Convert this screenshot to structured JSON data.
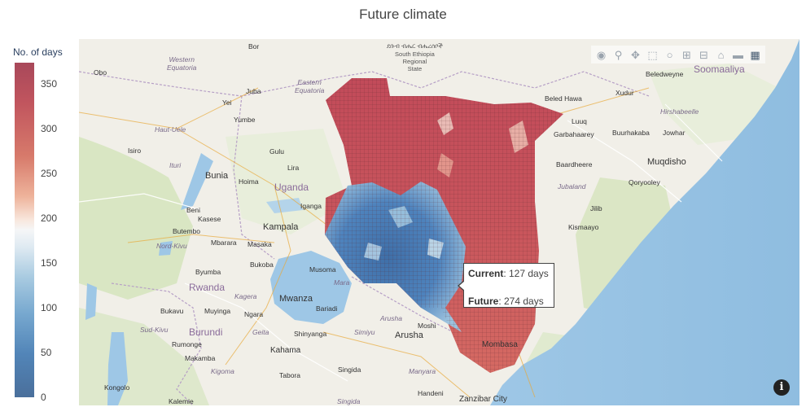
{
  "title": "Future climate",
  "colorbar": {
    "title": "No. of days",
    "ticks": [
      "350",
      "300",
      "250",
      "200",
      "150",
      "100",
      "50",
      "0"
    ]
  },
  "tooltip": {
    "current_label": "Current",
    "current_value": ": 127 days",
    "future_label": "Future",
    "future_value": ": 274 days"
  },
  "modebar": {
    "icons": [
      "camera-icon",
      "zoom-icon",
      "pan-icon",
      "box-select-icon",
      "lasso-icon",
      "zoom-in-icon",
      "zoom-out-icon",
      "home-icon",
      "reset-view-icon",
      "plotly-logo-icon"
    ]
  },
  "map_labels": {
    "bor": "Bor",
    "obo": "Obo",
    "juba": "Juba",
    "yei": "Yei",
    "yumbe": "Yumbe",
    "haut_uele": "Haut-Uele",
    "isiro": "Isiro",
    "gulu": "Gulu",
    "lira": "Lira",
    "ituri": "Ituri",
    "bunia": "Bunia",
    "hoima": "Hoima",
    "uganda": "Uganda",
    "kampala": "Kampala",
    "iganga": "Iganga",
    "beni": "Beni",
    "kasese": "Kasese",
    "butembo": "Butembo",
    "mbarara": "Mbarara",
    "masaka": "Masaka",
    "nord_kivu": "Nord-Kivu",
    "bukoba": "Bukoba",
    "musoma": "Musoma",
    "byumba": "Byumba",
    "rwanda": "Rwanda",
    "kagera": "Kagera",
    "mwanza": "Mwanza",
    "bariadi": "Bariadi",
    "arusha_region": "Arusha",
    "mara": "Mara",
    "bukavu": "Bukavu",
    "muyinga": "Muyinga",
    "ngara": "Ngara",
    "sud_kivu": "Sud-Kivu",
    "burundi": "Burundi",
    "geita": "Geita",
    "shinyanga": "Shinyanga",
    "simiyu": "Simiyu",
    "arusha": "Arusha",
    "moshi": "Moshi",
    "rumonge": "Rumonge",
    "makamba": "Makamba",
    "kahama": "Kahama",
    "kigoma": "Kigoma",
    "tabora": "Tabora",
    "singida": "Singida",
    "manyara": "Manyara",
    "kongolo": "Kongolo",
    "handeni": "Handeni",
    "kalemie": "Kalemie",
    "singida2": "Singida",
    "zanzibar": "Zanzibar City",
    "mombasa": "Mombasa",
    "beled_hawa": "Beled Hawa",
    "luuq": "Luuq",
    "garbahaarey": "Garbahaarey",
    "buurhakaba": "Buurhakaba",
    "jowhar": "Jowhar",
    "baardheere": "Baardheere",
    "muqdisho": "Muqdisho",
    "qoryooley": "Qoryooley",
    "jubaland": "Jubaland",
    "jilib": "Jilib",
    "kismaayo": "Kismaayo",
    "xudur": "Xudur",
    "hirshabeelle": "Hirshabeelle",
    "beledweyne": "Beledweyne",
    "somaliya": "Soomaaliya",
    "eastern_eq": "Eastern\nEquatoria",
    "western_eq": "Western\nEquatoria",
    "snnpr": "ደቡብ ብሔር ብሔረሰቦች\nSouth Ethiopia\nRegional\nState",
    "lake_victoria": "Mara"
  }
}
